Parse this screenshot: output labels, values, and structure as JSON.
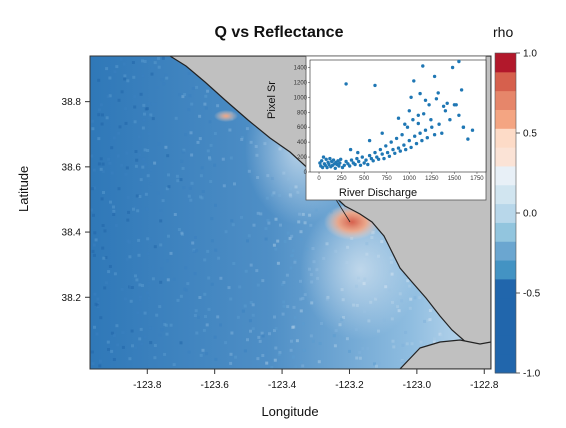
{
  "chart_data": [
    {
      "type": "heatmap",
      "title": "Q  vs Reflectance",
      "xlabel": "Longitude",
      "ylabel": "Latitude",
      "xlim": [
        -123.97,
        -122.78
      ],
      "ylim": [
        37.98,
        38.94
      ],
      "x_ticks": [
        "-123.8",
        "-123.6",
        "-123.4",
        "-123.2",
        "-123.0",
        "-122.8"
      ],
      "x_tick_values": [
        -123.8,
        -123.6,
        -123.4,
        -123.2,
        -123.0,
        -122.8
      ],
      "y_ticks": [
        "38.2",
        "38.4",
        "38.6",
        "38.8"
      ],
      "y_tick_values": [
        38.2,
        38.4,
        38.6,
        38.8
      ],
      "colorbar": {
        "label": "rho",
        "range": [
          -1.0,
          1.0
        ],
        "ticks": [
          "-1.0",
          "-0.5",
          "0.0",
          "0.5",
          "1.0"
        ],
        "tick_values": [
          -1.0,
          -0.5,
          0.0,
          0.5,
          1.0
        ],
        "colors": [
          "#2166ac",
          "#2166ac",
          "#2166ac",
          "#2166ac",
          "#2166ac",
          "#4393c3",
          "#6ba6d0",
          "#92c5de",
          "#b8d7ea",
          "#d1e5f0",
          "#e8f0f7",
          "#fbe3d6",
          "#fddbc7",
          "#f4a582",
          "#e6866a",
          "#d6604d",
          "#b2182b"
        ]
      },
      "land_color": "#c0c0c0",
      "annotations": {
        "hotspot_rho_near_river_mouth": 0.75,
        "secondary_hotspot_rho": 0.5
      }
    },
    {
      "type": "scatter",
      "xlabel": "River Discharge",
      "ylabel": "Pixel Sr",
      "xlim": [
        -100,
        1850
      ],
      "ylim": [
        0,
        1500
      ],
      "x_ticks": [
        "0",
        "250",
        "500",
        "750",
        "1000",
        "1250",
        "1500",
        "1750"
      ],
      "x_tick_values": [
        0,
        250,
        500,
        750,
        1000,
        1250,
        1500,
        1750
      ],
      "y_ticks": [
        "0",
        "200",
        "400",
        "600",
        "800",
        "1000",
        "1200",
        "1400"
      ],
      "y_tick_values": [
        0,
        200,
        400,
        600,
        800,
        1000,
        1200,
        1400
      ],
      "series": [
        {
          "color": "#1f77b4",
          "x": [
            10,
            20,
            30,
            40,
            50,
            60,
            70,
            80,
            90,
            100,
            110,
            120,
            130,
            140,
            150,
            160,
            170,
            180,
            190,
            200,
            210,
            220,
            230,
            240,
            260,
            280,
            300,
            320,
            340,
            360,
            380,
            400,
            420,
            440,
            460,
            480,
            500,
            520,
            540,
            560,
            580,
            600,
            620,
            640,
            660,
            680,
            700,
            720,
            740,
            760,
            780,
            800,
            820,
            840,
            860,
            880,
            900,
            920,
            940,
            960,
            980,
            1000,
            1020,
            1040,
            1060,
            1080,
            1100,
            1120,
            1140,
            1160,
            1180,
            1200,
            1220,
            1250,
            1280,
            1300,
            1330,
            1360,
            1400,
            1450,
            1500,
            1550,
            1600,
            1700,
            300,
            620,
            950,
            1020,
            1150,
            1280,
            1320,
            1380,
            1420,
            1550,
            1120,
            880,
            700,
            560,
            430,
            350,
            1000,
            1050,
            1100,
            1180,
            1240,
            1480,
            1520,
            1580,
            1650,
            1600
          ],
          "y": [
            120,
            80,
            150,
            60,
            200,
            110,
            90,
            170,
            60,
            130,
            100,
            180,
            70,
            140,
            90,
            160,
            110,
            50,
            130,
            100,
            150,
            80,
            120,
            170,
            60,
            90,
            140,
            110,
            80,
            160,
            120,
            100,
            180,
            140,
            90,
            200,
            120,
            160,
            100,
            220,
            180,
            150,
            260,
            200,
            170,
            300,
            240,
            180,
            350,
            260,
            210,
            400,
            300,
            250,
            450,
            320,
            280,
            500,
            360,
            300,
            600,
            420,
            330,
            700,
            480,
            380,
            650,
            520,
            420,
            780,
            560,
            460,
            900,
            600,
            500,
            980,
            640,
            520,
            820,
            700,
            900,
            760,
            600,
            560,
            1180,
            1160,
            640,
            1000,
            1420,
            1280,
            1060,
            880,
            920,
            1480,
            1050,
            720,
            520,
            420,
            260,
            300,
            820,
            1220,
            760,
            960,
            700,
            1400,
            900,
            1100,
            440,
            600
          ]
        }
      ]
    }
  ]
}
